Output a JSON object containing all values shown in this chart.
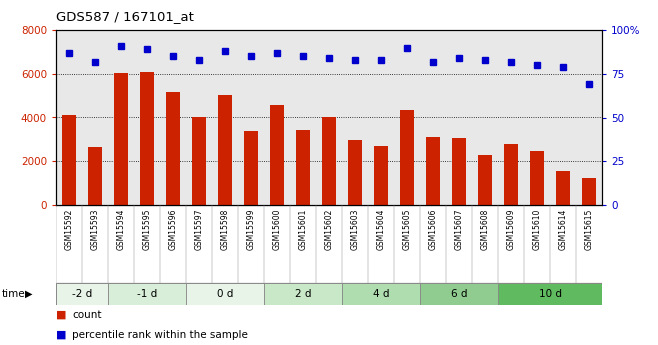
{
  "title": "GDS587 / 167101_at",
  "samples": [
    "GSM15592",
    "GSM15593",
    "GSM15594",
    "GSM15595",
    "GSM15596",
    "GSM15597",
    "GSM15598",
    "GSM15599",
    "GSM15600",
    "GSM15601",
    "GSM15602",
    "GSM15603",
    "GSM15604",
    "GSM15605",
    "GSM15606",
    "GSM15607",
    "GSM15608",
    "GSM15609",
    "GSM15610",
    "GSM15614",
    "GSM15615"
  ],
  "counts": [
    4100,
    2650,
    6050,
    6100,
    5150,
    4000,
    5050,
    3400,
    4550,
    3450,
    4000,
    2950,
    2700,
    4350,
    3100,
    3050,
    2300,
    2800,
    2450,
    1550,
    1250
  ],
  "percentiles": [
    87,
    82,
    91,
    89,
    85,
    83,
    88,
    85,
    87,
    85,
    84,
    83,
    83,
    90,
    82,
    84,
    83,
    82,
    80,
    79,
    69
  ],
  "groups": [
    {
      "label": "-2 d",
      "start": 0,
      "end": 2,
      "color": "#e8f4e8"
    },
    {
      "label": "-1 d",
      "start": 2,
      "end": 5,
      "color": "#d8eed8"
    },
    {
      "label": "0 d",
      "start": 5,
      "end": 8,
      "color": "#e8f4e8"
    },
    {
      "label": "2 d",
      "start": 8,
      "end": 11,
      "color": "#c8e8c8"
    },
    {
      "label": "4 d",
      "start": 11,
      "end": 14,
      "color": "#b0ddb0"
    },
    {
      "label": "6 d",
      "start": 14,
      "end": 17,
      "color": "#90cc90"
    },
    {
      "label": "10 d",
      "start": 17,
      "end": 21,
      "color": "#60bb60"
    }
  ],
  "ylim_left": [
    0,
    8000
  ],
  "ylim_right": [
    0,
    100
  ],
  "yticks_left": [
    0,
    2000,
    4000,
    6000,
    8000
  ],
  "yticks_right": [
    0,
    25,
    50,
    75,
    100
  ],
  "ytick_right_labels": [
    "0",
    "25",
    "50",
    "75",
    "100%"
  ],
  "bar_color": "#cc2200",
  "dot_color": "#0000cc",
  "plot_bg_color": "#e8e8e8",
  "legend_count": "count",
  "legend_pct": "percentile rank within the sample"
}
